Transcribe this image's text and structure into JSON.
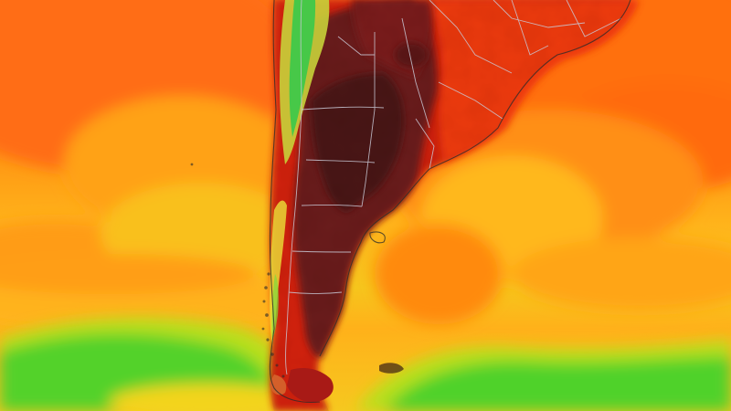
{
  "map": {
    "type": "temperature-heatmap",
    "region": "southern-south-america",
    "palette": {
      "extreme": "#3e1717",
      "very_hot": "#6b1a1a",
      "hot": "#b3120f",
      "warm": "#e1290f",
      "mild": "#ff7a10",
      "cool": "#ffb21a",
      "cooler": "#f7d11c",
      "cold": "#b5e21a",
      "coldest": "#2fd02a"
    },
    "overlays": [
      "country-borders",
      "province-borders",
      "coastline"
    ]
  }
}
